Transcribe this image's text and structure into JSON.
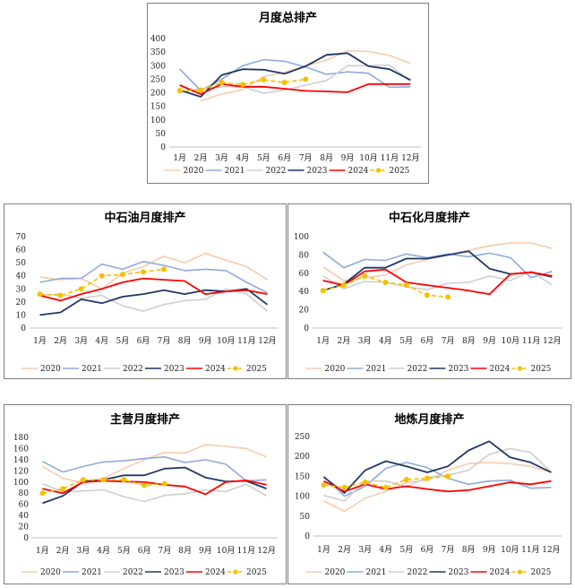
{
  "colors": {
    "2020": "#f8cbad",
    "2021": "#8faadc",
    "2022": "#d0cece",
    "2023": "#1f3864",
    "2024": "#ff0000",
    "2025": "#f5c000"
  },
  "chart_data": [
    {
      "type": "line",
      "title": "月度总排产",
      "categories": [
        "1月",
        "2月",
        "3月",
        "4月",
        "5月",
        "6月",
        "7月",
        "8月",
        "9月",
        "10月",
        "11月",
        "12月"
      ],
      "ylim": [
        0,
        400
      ],
      "ytick_step": 50,
      "legend_position": "bottom",
      "series": [
        {
          "name": "2020",
          "values": [
            null,
            170,
            195,
            212,
            260,
            275,
            300,
            320,
            355,
            352,
            338,
            308
          ]
        },
        {
          "name": "2021",
          "values": [
            288,
            208,
            250,
            300,
            322,
            316,
            295,
            268,
            277,
            272,
            220,
            222
          ]
        },
        {
          "name": "2022",
          "values": [
            200,
            215,
            222,
            222,
            198,
            210,
            228,
            245,
            300,
            300,
            302,
            243
          ]
        },
        {
          "name": "2023",
          "values": [
            210,
            185,
            265,
            287,
            285,
            270,
            298,
            340,
            346,
            298,
            287,
            247
          ]
        },
        {
          "name": "2024",
          "values": [
            228,
            195,
            232,
            222,
            222,
            215,
            207,
            205,
            202,
            232,
            232,
            232
          ]
        },
        {
          "name": "2025",
          "values": [
            208,
            210,
            238,
            230,
            248,
            238,
            250,
            null,
            null,
            null,
            null,
            null
          ]
        }
      ]
    },
    {
      "type": "line",
      "title": "中石油月度排产",
      "categories": [
        "1月",
        "2月",
        "3月",
        "4月",
        "5月",
        "6月",
        "7月",
        "8月",
        "9月",
        "10月",
        "11月",
        "12月"
      ],
      "ylim": [
        0,
        70
      ],
      "ytick_step": 10,
      "legend_position": "bottom",
      "series": [
        {
          "name": "2020",
          "values": [
            39,
            37,
            38,
            30,
            42,
            47,
            55,
            50,
            57,
            52,
            47,
            37
          ]
        },
        {
          "name": "2021",
          "values": [
            35,
            38,
            38,
            49,
            45,
            51,
            48,
            44,
            45,
            44,
            35,
            27
          ]
        },
        {
          "name": "2022",
          "values": [
            25,
            26,
            23,
            25,
            17,
            13,
            18,
            21,
            22,
            30,
            26,
            13
          ]
        },
        {
          "name": "2023",
          "values": [
            10,
            12,
            22,
            19,
            24,
            26,
            29,
            26,
            29,
            28,
            30,
            18
          ]
        },
        {
          "name": "2024",
          "values": [
            25,
            21,
            26,
            30,
            35,
            38,
            37,
            36,
            26,
            28,
            29,
            26
          ]
        },
        {
          "name": "2025",
          "values": [
            26,
            25,
            30,
            40,
            41,
            43,
            45,
            null,
            null,
            null,
            null,
            null
          ]
        }
      ]
    },
    {
      "type": "line",
      "title": "中石化月度排产",
      "categories": [
        "1月",
        "2月",
        "3月",
        "4月",
        "5月",
        "6月",
        "7月",
        "8月",
        "9月",
        "10月",
        "11月",
        "12月"
      ],
      "ylim": [
        0,
        100
      ],
      "ytick_step": 20,
      "legend_position": "bottom",
      "series": [
        {
          "name": "2020",
          "values": [
            67,
            52,
            55,
            58,
            69,
            75,
            80,
            85,
            90,
            93,
            93,
            87
          ]
        },
        {
          "name": "2021",
          "values": [
            83,
            66,
            75,
            74,
            81,
            77,
            81,
            78,
            82,
            77,
            55,
            62
          ]
        },
        {
          "name": "2022",
          "values": [
            57,
            43,
            51,
            50,
            45,
            42,
            49,
            50,
            57,
            52,
            62,
            47
          ]
        },
        {
          "name": "2023",
          "values": [
            41,
            48,
            66,
            66,
            76,
            76,
            80,
            84,
            65,
            59,
            61,
            56
          ]
        },
        {
          "name": "2024",
          "values": [
            52,
            47,
            62,
            64,
            50,
            47,
            44,
            41,
            37,
            59,
            61,
            57
          ]
        },
        {
          "name": "2025",
          "values": [
            41,
            47,
            57,
            50,
            47,
            36,
            34,
            null,
            null,
            null,
            null,
            null
          ]
        }
      ]
    },
    {
      "type": "line",
      "title": "主营月度排产",
      "categories": [
        "1月",
        "2月",
        "3月",
        "4月",
        "5月",
        "6月",
        "7月",
        "8月",
        "9月",
        "10月",
        "11月",
        "12月"
      ],
      "ylim": [
        0,
        180
      ],
      "ytick_step": 20,
      "legend_position": "bottom",
      "series": [
        {
          "name": "2020",
          "values": [
            128,
            107,
            98,
            107,
            124,
            140,
            153,
            152,
            167,
            164,
            160,
            145
          ]
        },
        {
          "name": "2021",
          "values": [
            137,
            118,
            128,
            136,
            138,
            142,
            145,
            135,
            140,
            132,
            102,
            104
          ]
        },
        {
          "name": "2022",
          "values": [
            97,
            82,
            84,
            86,
            74,
            65,
            76,
            79,
            86,
            83,
            96,
            75
          ]
        },
        {
          "name": "2023",
          "values": [
            62,
            75,
            101,
            104,
            112,
            112,
            124,
            126,
            108,
            101,
            102,
            88
          ]
        },
        {
          "name": "2024",
          "values": [
            88,
            80,
            100,
            102,
            101,
            100,
            95,
            92,
            78,
            100,
            103,
            95
          ]
        },
        {
          "name": "2025",
          "values": [
            80,
            88,
            104,
            104,
            104,
            94,
            97,
            null,
            null,
            null,
            null,
            null
          ]
        }
      ]
    },
    {
      "type": "line",
      "title": "地炼月度排产",
      "categories": [
        "1月",
        "2月",
        "3月",
        "4月",
        "5月",
        "6月",
        "7月",
        "8月",
        "9月",
        "10月",
        "11月",
        "12月"
      ],
      "ylim": [
        0,
        250
      ],
      "ytick_step": 50,
      "legend_position": "bottom",
      "series": [
        {
          "name": "2020",
          "values": [
            88,
            62,
            95,
            112,
            135,
            140,
            165,
            182,
            185,
            182,
            175,
            160
          ]
        },
        {
          "name": "2021",
          "values": [
            150,
            100,
            125,
            170,
            185,
            172,
            145,
            130,
            138,
            140,
            120,
            122
          ]
        },
        {
          "name": "2022",
          "values": [
            102,
            88,
            138,
            138,
            124,
            147,
            153,
            165,
            205,
            220,
            210,
            160
          ]
        },
        {
          "name": "2023",
          "values": [
            148,
            108,
            165,
            188,
            175,
            160,
            175,
            215,
            238,
            198,
            185,
            160
          ]
        },
        {
          "name": "2024",
          "values": [
            138,
            112,
            130,
            118,
            125,
            118,
            112,
            115,
            125,
            135,
            130,
            138
          ]
        },
        {
          "name": "2025",
          "values": [
            128,
            122,
            135,
            122,
            142,
            145,
            150,
            null,
            null,
            null,
            null,
            null
          ]
        }
      ]
    }
  ]
}
